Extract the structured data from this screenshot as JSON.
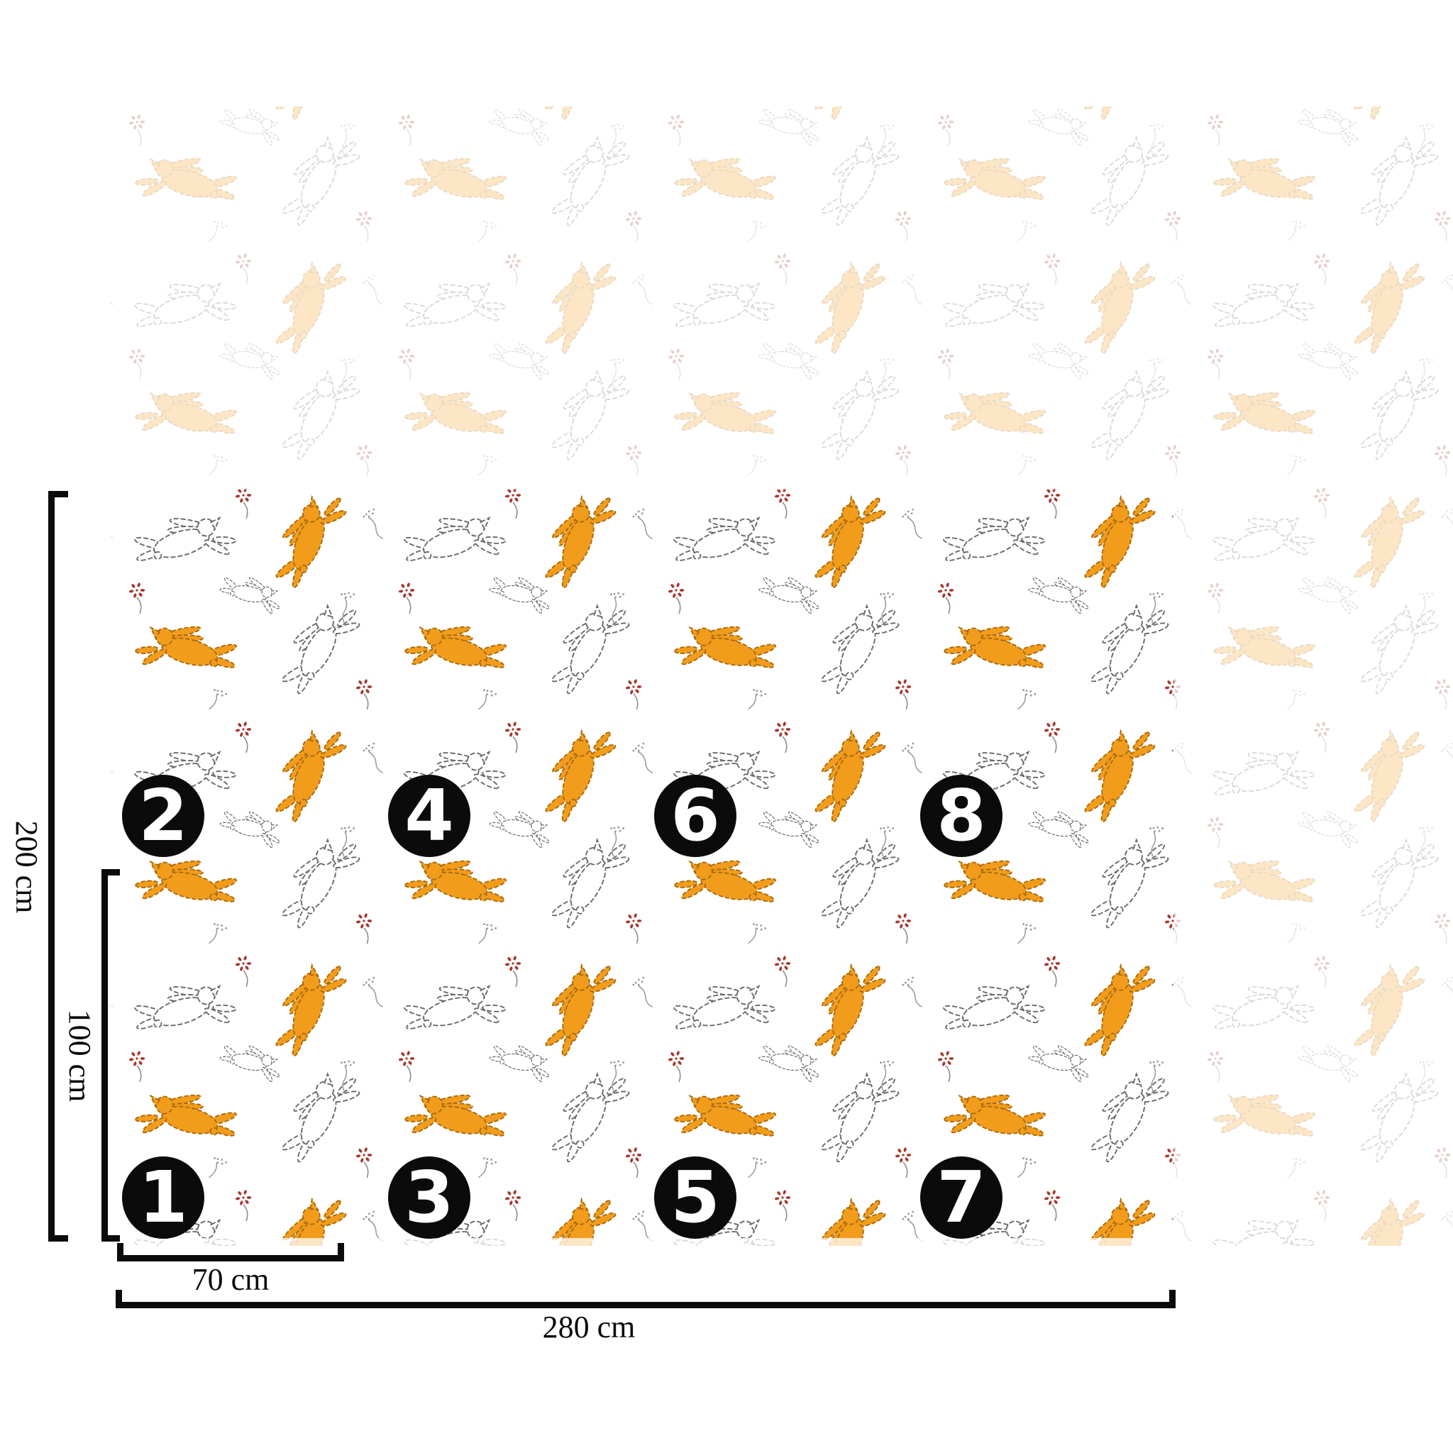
{
  "diagram": {
    "type": "wallpaper panel measurement diagram",
    "dimensions": {
      "total_height": "200 cm",
      "half_height": "100 cm",
      "panel_width": "70 cm",
      "total_width": "280 cm"
    },
    "panel_count": 8,
    "panels": [
      {
        "number": "1",
        "column": 1,
        "row": "bottom"
      },
      {
        "number": "2",
        "column": 1,
        "row": "top"
      },
      {
        "number": "3",
        "column": 2,
        "row": "bottom"
      },
      {
        "number": "4",
        "column": 2,
        "row": "top"
      },
      {
        "number": "5",
        "column": 3,
        "row": "bottom"
      },
      {
        "number": "6",
        "column": 3,
        "row": "top"
      },
      {
        "number": "7",
        "column": 4,
        "row": "bottom"
      },
      {
        "number": "8",
        "column": 4,
        "row": "top"
      }
    ],
    "pattern": {
      "motif": "leaping hares with red berry sprigs and twig doodles",
      "colors": {
        "hare_orange": "#F29C1C",
        "hare_orange_dark": "#A86A0C",
        "hare_outline_gray": "#6B6B6B",
        "berry_red": "#A6372C",
        "line_black": "#0B0B0B",
        "background": "#FFFFFF"
      }
    }
  }
}
